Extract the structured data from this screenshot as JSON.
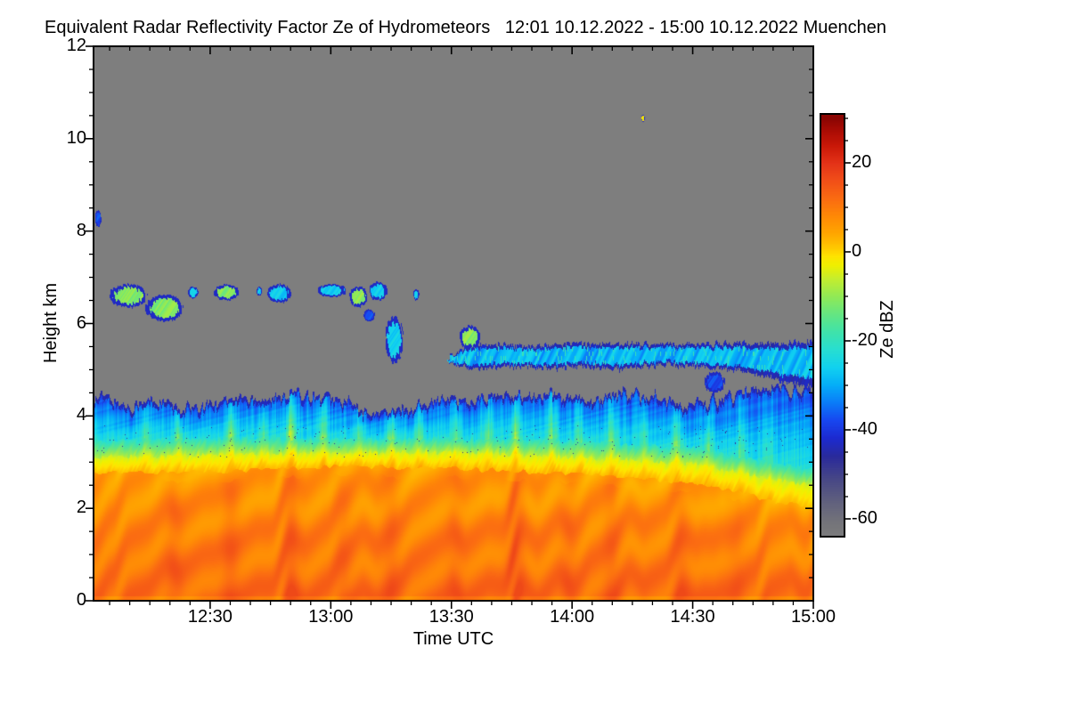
{
  "figure": {
    "background": "#ffffff",
    "text_color": "#000000"
  },
  "chart_data": {
    "type": "heatmap",
    "title": "Equivalent Radar Reflectivity Factor Ze of Hydrometeors   12:01 10.12.2022 - 15:00 10.12.2022 Muenchen",
    "xlabel": "Time UTC",
    "ylabel": "Height km",
    "x_start": "12:01",
    "x_end": "15:00",
    "x_span_minutes": 179,
    "x_ticks": [
      {
        "minute": 29,
        "label": "12:30"
      },
      {
        "minute": 59,
        "label": "13:00"
      },
      {
        "minute": 89,
        "label": "13:30"
      },
      {
        "minute": 119,
        "label": "14:00"
      },
      {
        "minute": 149,
        "label": "14:30"
      },
      {
        "minute": 179,
        "label": "15:00"
      }
    ],
    "x_minor_step_minutes": 5,
    "y_range_km": [
      0,
      12
    ],
    "y_ticks": [
      0,
      2,
      4,
      6,
      8,
      10,
      12
    ],
    "y_minor_step_km": 0.5,
    "grid": false,
    "no_signal_color": "#7e7e7e",
    "colorbar": {
      "label": "Ze dBZ",
      "ticks": [
        20,
        0,
        -20,
        -40,
        -60
      ],
      "minor_step": 5,
      "range": [
        -64,
        31
      ],
      "position": "right"
    },
    "colormap_stops": [
      [
        -65,
        "#7e7e7e"
      ],
      [
        -61,
        "#75757a"
      ],
      [
        -56,
        "#60607e"
      ],
      [
        -51,
        "#474787"
      ],
      [
        -46,
        "#2a2a9c"
      ],
      [
        -42,
        "#1d2ad0"
      ],
      [
        -38,
        "#1847f0"
      ],
      [
        -34,
        "#0b7cf8"
      ],
      [
        -30,
        "#05aef8"
      ],
      [
        -26,
        "#12d2f0"
      ],
      [
        -22,
        "#28dfd2"
      ],
      [
        -18,
        "#40e3ab"
      ],
      [
        -14,
        "#65e682"
      ],
      [
        -10,
        "#92ea56"
      ],
      [
        -6,
        "#c6ee2e"
      ],
      [
        -3,
        "#f0f000"
      ],
      [
        -1,
        "#ffe400"
      ],
      [
        1,
        "#ffc800"
      ],
      [
        4,
        "#ffa800"
      ],
      [
        8,
        "#ff8a06"
      ],
      [
        12,
        "#fb6c12"
      ],
      [
        16,
        "#f25018"
      ],
      [
        20,
        "#e43318"
      ],
      [
        24,
        "#c91808"
      ],
      [
        28,
        "#a30a04"
      ],
      [
        30,
        "#8b0603"
      ]
    ],
    "layers": {
      "precipitation": {
        "description": "stratiform precipitation from surface to ~4.5 km with fall streaks",
        "top_sample_step_minutes": 5,
        "top_km": [
          4.45,
          4.3,
          4.25,
          4.3,
          4.2,
          4.15,
          4.3,
          4.45,
          4.35,
          4.35,
          4.55,
          4.4,
          4.35,
          4.2,
          4.05,
          4.05,
          4.2,
          4.35,
          4.4,
          4.35,
          4.4,
          4.45,
          4.4,
          4.5,
          4.4,
          4.35,
          4.45,
          4.5,
          4.4,
          4.2,
          4.3,
          4.35,
          4.45,
          4.55,
          4.6,
          4.55,
          4.6
        ],
        "boundary_minutes": [
          0,
          30,
          60,
          90,
          120,
          150,
          170,
          179
        ],
        "cyan_base_km": [
          3.45,
          3.5,
          3.5,
          3.5,
          3.45,
          3.3,
          2.95,
          2.85
        ],
        "green_base_km": [
          3.1,
          3.15,
          3.2,
          3.2,
          3.1,
          2.95,
          2.6,
          2.5
        ],
        "yellow_base_km": [
          2.75,
          2.8,
          2.9,
          2.85,
          2.75,
          2.55,
          2.15,
          2.0
        ],
        "updraft_spikes": [
          [
            13,
            0.5
          ],
          [
            21,
            0.6
          ],
          [
            34,
            0.8
          ],
          [
            42,
            0.5
          ],
          [
            49,
            1.0
          ],
          [
            57,
            0.7
          ],
          [
            66,
            0.5
          ],
          [
            74,
            0.7
          ],
          [
            81,
            0.6
          ],
          [
            90,
            0.5
          ],
          [
            98,
            0.6
          ],
          [
            105,
            0.9
          ],
          [
            114,
            0.7
          ],
          [
            121,
            0.5
          ],
          [
            129,
            0.7
          ],
          [
            137,
            0.5
          ],
          [
            145,
            0.8
          ],
          [
            153,
            0.6
          ],
          [
            161,
            0.5
          ],
          [
            168,
            0.4
          ]
        ],
        "heavy_streaks": [
          [
            20,
            0.6
          ],
          [
            34,
            0.7
          ],
          [
            49,
            0.9
          ],
          [
            62,
            0.5
          ],
          [
            74,
            0.6
          ],
          [
            90,
            0.5
          ],
          [
            105,
            1.0
          ],
          [
            118,
            0.5
          ],
          [
            129,
            0.6
          ],
          [
            146,
            0.7
          ],
          [
            160,
            0.4
          ]
        ]
      },
      "midlevel_cloud_band": {
        "description": "thin ragged cloud band near 5.3 km from ~13:29 to 15:00",
        "start_minute": 88,
        "end_minute": 179,
        "sample_step_minutes": 7,
        "center_km": [
          5.2,
          5.28,
          5.3,
          5.27,
          5.3,
          5.32,
          5.28,
          5.3,
          5.33,
          5.3,
          5.28,
          5.25,
          5.22,
          5.25
        ],
        "half_depth_km": [
          0.15,
          0.22,
          0.2,
          0.18,
          0.22,
          0.2,
          0.24,
          0.2,
          0.18,
          0.2,
          0.24,
          0.28,
          0.3,
          0.32
        ],
        "core_dbz": -29,
        "edge_dbz": -44
      },
      "cloud_patches": [
        {
          "t0": 4,
          "t1": 13,
          "base_km": 6.35,
          "top_km": 6.85,
          "core": "green"
        },
        {
          "t0": 13,
          "t1": 22,
          "base_km": 6.05,
          "top_km": 6.62,
          "core": "green"
        },
        {
          "t0": 23.5,
          "t1": 26,
          "base_km": 6.55,
          "top_km": 6.8,
          "core": "cyan"
        },
        {
          "t0": 30,
          "t1": 36,
          "base_km": 6.5,
          "top_km": 6.85,
          "core": "green"
        },
        {
          "t0": 40.5,
          "t1": 41.8,
          "base_km": 6.6,
          "top_km": 6.8,
          "core": "cyan"
        },
        {
          "t0": 43,
          "t1": 49,
          "base_km": 6.45,
          "top_km": 6.85,
          "core": "cyan"
        },
        {
          "t0": 55.5,
          "t1": 63,
          "base_km": 6.58,
          "top_km": 6.85,
          "core": "cyan"
        },
        {
          "t0": 63.5,
          "t1": 68,
          "base_km": 6.35,
          "top_km": 6.8,
          "core": "green"
        },
        {
          "t0": 68.5,
          "t1": 73,
          "base_km": 6.5,
          "top_km": 6.9,
          "core": "cyan"
        },
        {
          "t0": 67,
          "t1": 70,
          "base_km": 6.05,
          "top_km": 6.3,
          "core": "blue"
        },
        {
          "t0": 72.5,
          "t1": 77,
          "base_km": 5.15,
          "top_km": 6.15,
          "core": "cyan"
        },
        {
          "t0": 79.5,
          "t1": 81,
          "base_km": 6.5,
          "top_km": 6.75,
          "core": "cyan"
        },
        {
          "t0": 91,
          "t1": 96,
          "base_km": 5.45,
          "top_km": 5.95,
          "core": "green"
        },
        {
          "t0": 152,
          "t1": 157,
          "base_km": 4.5,
          "top_km": 4.95,
          "core": "blue"
        },
        {
          "t0": 0.3,
          "t1": 1.8,
          "base_km": 8.1,
          "top_km": 8.45,
          "core": "blue"
        },
        {
          "t0": 136.3,
          "t1": 137.2,
          "base_km": 10.38,
          "top_km": 10.52,
          "core": "yellow"
        }
      ],
      "patch_core_dbz": {
        "green": -11,
        "cyan": -26,
        "blue": -38,
        "yellow": -2
      }
    }
  }
}
